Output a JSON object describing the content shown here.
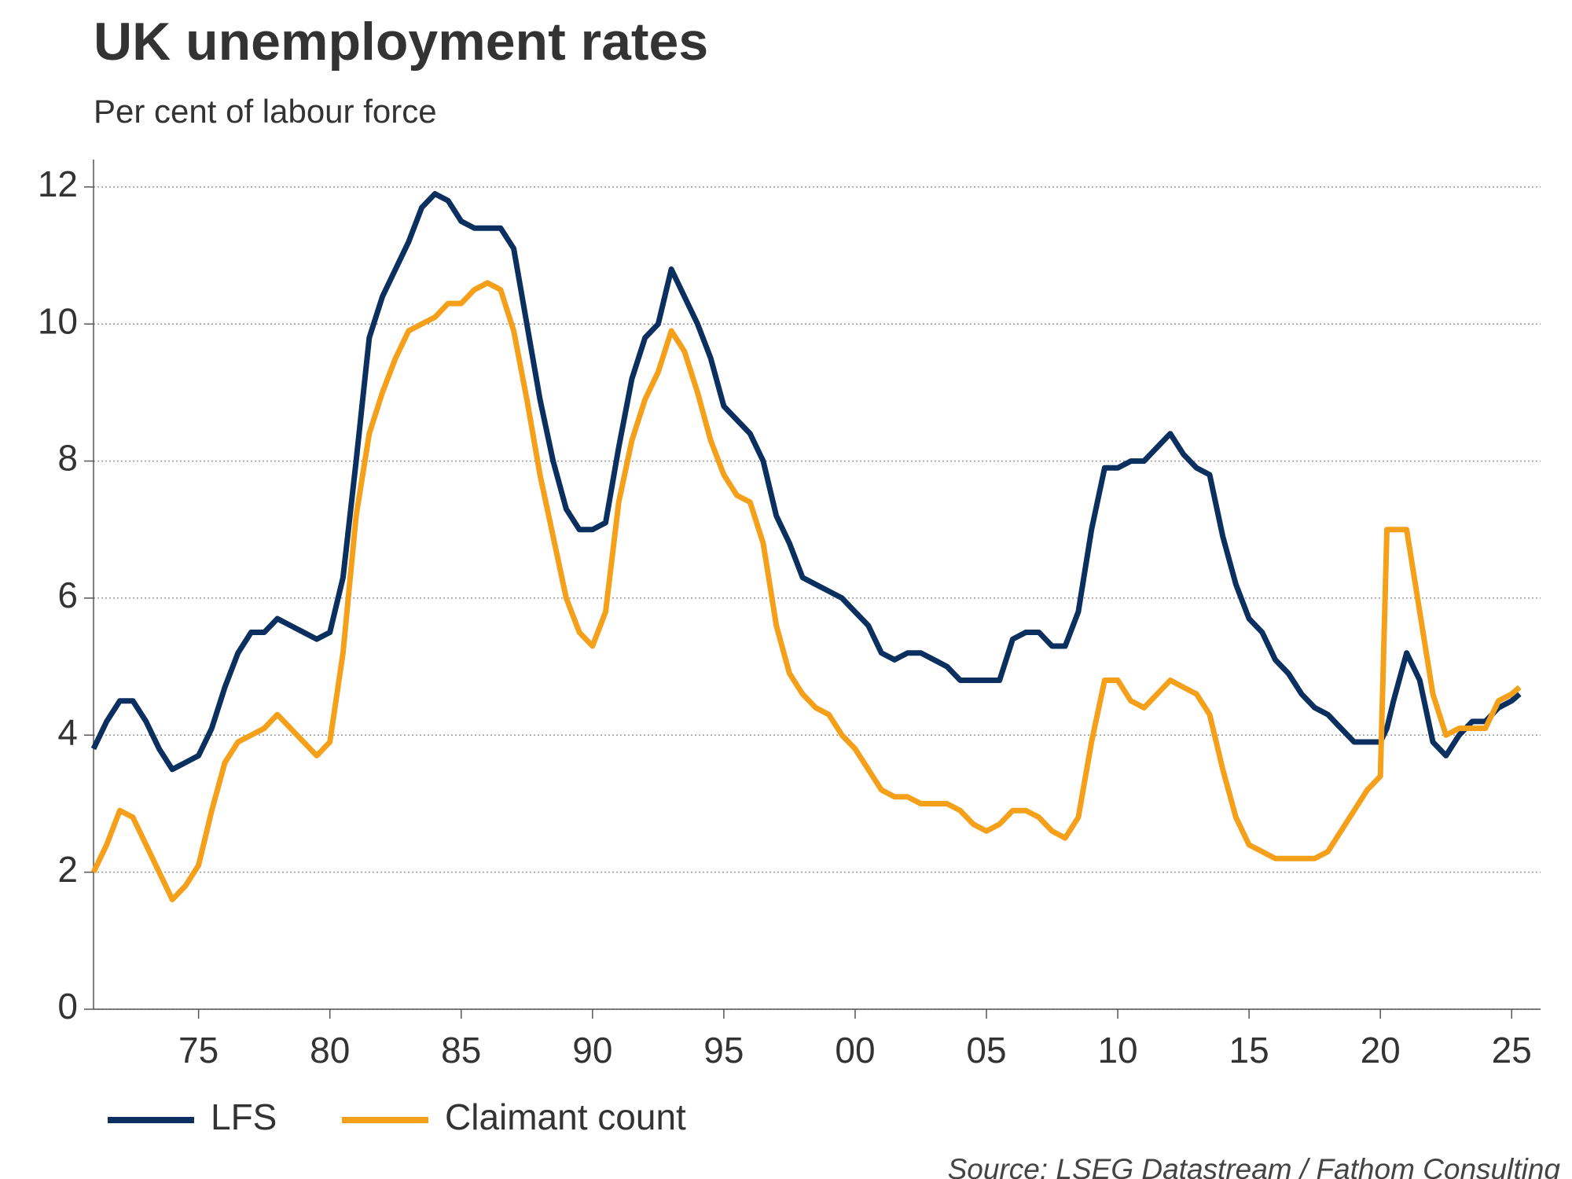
{
  "chart_data": {
    "type": "line",
    "title": "UK unemployment rates",
    "subtitle": "Per cent of labour force",
    "source": "Source: LSEG Datastream / Fathom Consulting",
    "x": [
      1971.0,
      1971.5,
      1972.0,
      1972.5,
      1973.0,
      1973.5,
      1974.0,
      1974.5,
      1975.0,
      1975.5,
      1976.0,
      1976.5,
      1977.0,
      1977.5,
      1978.0,
      1978.5,
      1979.0,
      1979.5,
      1980.0,
      1980.5,
      1981.0,
      1981.5,
      1982.0,
      1982.5,
      1983.0,
      1983.5,
      1984.0,
      1984.5,
      1985.0,
      1985.5,
      1986.0,
      1986.5,
      1987.0,
      1987.5,
      1988.0,
      1988.5,
      1989.0,
      1989.5,
      1990.0,
      1990.5,
      1991.0,
      1991.5,
      1992.0,
      1992.5,
      1993.0,
      1993.5,
      1994.0,
      1994.5,
      1995.0,
      1995.5,
      1996.0,
      1996.5,
      1997.0,
      1997.5,
      1998.0,
      1998.5,
      1999.0,
      1999.5,
      2000.0,
      2000.5,
      2001.0,
      2001.5,
      2002.0,
      2002.5,
      2003.0,
      2003.5,
      2004.0,
      2004.5,
      2005.0,
      2005.5,
      2006.0,
      2006.5,
      2007.0,
      2007.5,
      2008.0,
      2008.5,
      2009.0,
      2009.5,
      2010.0,
      2010.5,
      2011.0,
      2011.5,
      2012.0,
      2012.5,
      2013.0,
      2013.5,
      2014.0,
      2014.5,
      2015.0,
      2015.5,
      2016.0,
      2016.5,
      2017.0,
      2017.5,
      2018.0,
      2018.5,
      2019.0,
      2019.5,
      2020.0,
      2020.25,
      2020.5,
      2021.0,
      2021.5,
      2022.0,
      2022.5,
      2023.0,
      2023.5,
      2024.0,
      2024.5,
      2025.0,
      2025.3
    ],
    "series": [
      {
        "name": "LFS",
        "color": "#0b2f5e",
        "values": [
          3.8,
          4.2,
          4.5,
          4.5,
          4.2,
          3.8,
          3.5,
          3.6,
          3.7,
          4.1,
          4.7,
          5.2,
          5.5,
          5.5,
          5.7,
          5.6,
          5.5,
          5.4,
          5.5,
          6.3,
          8.0,
          9.8,
          10.4,
          10.8,
          11.2,
          11.7,
          11.9,
          11.8,
          11.5,
          11.4,
          11.4,
          11.4,
          11.1,
          10.0,
          8.9,
          8.0,
          7.3,
          7.0,
          7.0,
          7.1,
          8.2,
          9.2,
          9.8,
          10.0,
          10.8,
          10.4,
          10.0,
          9.5,
          8.8,
          8.6,
          8.4,
          8.0,
          7.2,
          6.8,
          6.3,
          6.2,
          6.1,
          6.0,
          5.8,
          5.6,
          5.2,
          5.1,
          5.2,
          5.2,
          5.1,
          5.0,
          4.8,
          4.8,
          4.8,
          4.8,
          5.4,
          5.5,
          5.5,
          5.3,
          5.3,
          5.8,
          7.0,
          7.9,
          7.9,
          8.0,
          8.0,
          8.2,
          8.4,
          8.1,
          7.9,
          7.8,
          6.9,
          6.2,
          5.7,
          5.5,
          5.1,
          4.9,
          4.6,
          4.4,
          4.3,
          4.1,
          3.9,
          3.9,
          3.9,
          4.1,
          4.5,
          5.2,
          4.8,
          3.9,
          3.7,
          4.0,
          4.2,
          4.2,
          4.4,
          4.5,
          4.6
        ]
      },
      {
        "name": "Claimant count",
        "color": "#f5a01a",
        "values": [
          2.0,
          2.4,
          2.9,
          2.8,
          2.4,
          2.0,
          1.6,
          1.8,
          2.1,
          2.9,
          3.6,
          3.9,
          4.0,
          4.1,
          4.3,
          4.1,
          3.9,
          3.7,
          3.9,
          5.2,
          7.2,
          8.4,
          9.0,
          9.5,
          9.9,
          10.0,
          10.1,
          10.3,
          10.3,
          10.5,
          10.6,
          10.5,
          9.9,
          8.9,
          7.8,
          6.9,
          6.0,
          5.5,
          5.3,
          5.8,
          7.4,
          8.3,
          8.9,
          9.3,
          9.9,
          9.6,
          9.0,
          8.3,
          7.8,
          7.5,
          7.4,
          6.8,
          5.6,
          4.9,
          4.6,
          4.4,
          4.3,
          4.0,
          3.8,
          3.5,
          3.2,
          3.1,
          3.1,
          3.0,
          3.0,
          3.0,
          2.9,
          2.7,
          2.6,
          2.7,
          2.9,
          2.9,
          2.8,
          2.6,
          2.5,
          2.8,
          3.9,
          4.8,
          4.8,
          4.5,
          4.4,
          4.6,
          4.8,
          4.7,
          4.6,
          4.3,
          3.5,
          2.8,
          2.4,
          2.3,
          2.2,
          2.2,
          2.2,
          2.2,
          2.3,
          2.6,
          2.9,
          3.2,
          3.4,
          7.0,
          7.0,
          7.0,
          5.8,
          4.6,
          4.0,
          4.1,
          4.1,
          4.1,
          4.5,
          4.6,
          4.7
        ]
      }
    ],
    "xlim": [
      1971,
      2026.1
    ],
    "xticks": [
      {
        "value": 1975,
        "label": "75"
      },
      {
        "value": 1980,
        "label": "80"
      },
      {
        "value": 1985,
        "label": "85"
      },
      {
        "value": 1990,
        "label": "90"
      },
      {
        "value": 1995,
        "label": "95"
      },
      {
        "value": 2000,
        "label": "00"
      },
      {
        "value": 2005,
        "label": "05"
      },
      {
        "value": 2010,
        "label": "10"
      },
      {
        "value": 2015,
        "label": "15"
      },
      {
        "value": 2020,
        "label": "20"
      },
      {
        "value": 2025,
        "label": "25"
      }
    ],
    "ylim": [
      0,
      12.4
    ],
    "yticks": [
      0,
      2,
      4,
      6,
      8,
      10,
      12
    ],
    "grid": true
  }
}
